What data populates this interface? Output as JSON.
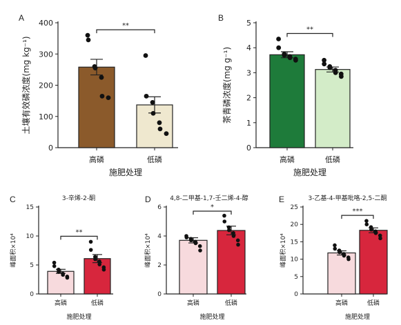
{
  "chart_data": [
    {
      "panel": "A",
      "type": "bar",
      "title": "",
      "xlabel": "施肥处理",
      "ylabel": "土壤有效磷浓度(mg kg⁻¹)",
      "ylim": [
        0,
        400
      ],
      "yticks": [
        0,
        100,
        200,
        300,
        400
      ],
      "categories": [
        "高磷",
        "低磷"
      ],
      "values": [
        258,
        137
      ],
      "errors": [
        25,
        26
      ],
      "bar_colors": [
        "#8b5a2b",
        "#efe8cf"
      ],
      "points": [
        [
          360,
          345,
          260,
          255,
          225,
          165,
          160
        ],
        [
          295,
          165,
          145,
          110,
          80,
          60,
          45
        ]
      ],
      "significance": "**"
    },
    {
      "panel": "B",
      "type": "bar",
      "title": "",
      "xlabel": "施肥处理",
      "ylabel": "茶青磷浓度(mg g⁻¹)",
      "ylim": [
        0,
        5
      ],
      "yticks": [
        0,
        1,
        2,
        3,
        4,
        5
      ],
      "categories": [
        "高磷",
        "低磷"
      ],
      "values": [
        3.72,
        3.13
      ],
      "errors": [
        0.12,
        0.1
      ],
      "bar_colors": [
        "#1e7b3a",
        "#d3ecc8"
      ],
      "points": [
        [
          4.35,
          4.0,
          3.75,
          3.7,
          3.65,
          3.6,
          3.55,
          3.5
        ],
        [
          3.5,
          3.35,
          3.25,
          3.2,
          3.1,
          3.0,
          2.95,
          2.85
        ]
      ],
      "significance": "**"
    },
    {
      "panel": "C",
      "type": "bar",
      "title": "3-辛烯-2-酮",
      "xlabel": "施肥处理",
      "ylabel": "峰面积×10⁴",
      "ylim": [
        0,
        15
      ],
      "yticks": [
        0,
        5,
        10,
        15
      ],
      "categories": [
        "高磷",
        "低磷"
      ],
      "values": [
        3.9,
        6.1
      ],
      "errors": [
        0.35,
        0.7
      ],
      "bar_colors": [
        "#f7dadd",
        "#d7263d"
      ],
      "points": [
        [
          5.4,
          4.8,
          4.2,
          3.8,
          3.5,
          3.3,
          3.0,
          2.8
        ],
        [
          9.0,
          7.6,
          6.4,
          6.0,
          5.6,
          5.1,
          4.6,
          4.2
        ]
      ],
      "significance": "**"
    },
    {
      "panel": "D",
      "type": "bar",
      "title": "4,8-二甲基-1,7-壬二烯-4-醇",
      "xlabel": "施肥处理",
      "ylabel": "峰面积×10⁴",
      "ylim": [
        0,
        6
      ],
      "yticks": [
        0,
        2,
        4,
        6
      ],
      "categories": [
        "高磷",
        "低磷"
      ],
      "values": [
        3.7,
        4.38
      ],
      "errors": [
        0.18,
        0.3
      ],
      "bar_colors": [
        "#f7dadd",
        "#d7263d"
      ],
      "points": [
        [
          4.0,
          3.9,
          3.8,
          3.7,
          3.6,
          3.5,
          3.3,
          3.0
        ],
        [
          5.4,
          5.0,
          4.6,
          4.4,
          4.2,
          4.0,
          3.7,
          3.4
        ]
      ],
      "significance": "*"
    },
    {
      "panel": "E",
      "type": "bar",
      "title": "3-乙基-4-甲基吡咯-2,5-二酮",
      "xlabel": "施肥处理",
      "ylabel": "峰面积×10⁴",
      "ylim": [
        0,
        25
      ],
      "yticks": [
        0,
        5,
        10,
        15,
        20,
        25
      ],
      "categories": [
        "高磷",
        "低磷"
      ],
      "values": [
        11.8,
        18.3
      ],
      "errors": [
        0.6,
        0.7
      ],
      "bar_colors": [
        "#f7dadd",
        "#d7263d"
      ],
      "points": [
        [
          14.0,
          13.0,
          12.5,
          12.0,
          11.5,
          11.0,
          10.5,
          10.0
        ],
        [
          21.0,
          20.0,
          19.2,
          18.5,
          18.0,
          17.5,
          16.8,
          16.0
        ]
      ],
      "significance": "***"
    }
  ]
}
